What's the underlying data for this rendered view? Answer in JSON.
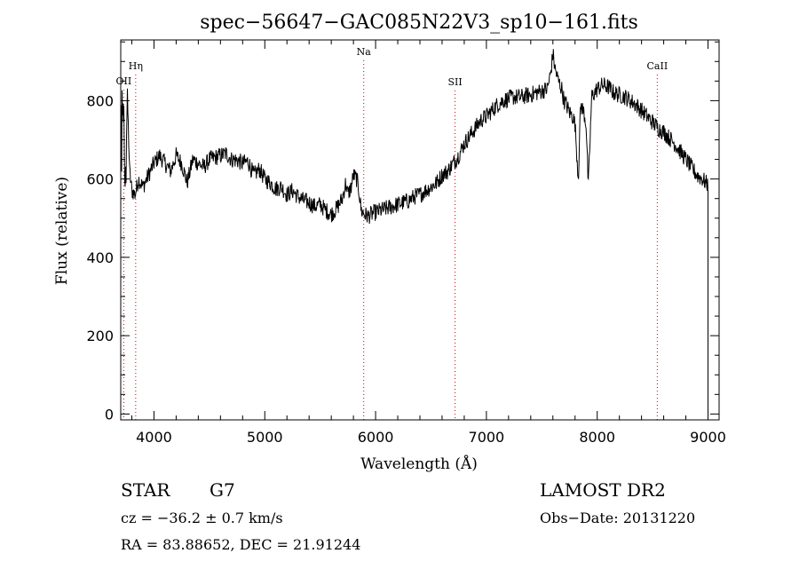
{
  "chart_data": {
    "type": "line",
    "title": "spec−56647−GAC085N22V3_sp10−161.fits",
    "xlabel": "Wavelength (Å)",
    "ylabel": "Flux (relative)",
    "xlim": [
      3700,
      9100
    ],
    "ylim": [
      -15,
      955
    ],
    "xticks": [
      4000,
      5000,
      6000,
      7000,
      8000,
      9000
    ],
    "yticks": [
      0,
      200,
      400,
      600,
      800
    ],
    "grid": false,
    "line_color": "#000000",
    "marker_color": "#cc0000",
    "lines": [
      {
        "label": "OII",
        "wavelength": 3727
      },
      {
        "label": "Hη",
        "wavelength": 3835
      },
      {
        "label": "Na",
        "wavelength": 5893
      },
      {
        "label": "SII",
        "wavelength": 6717
      },
      {
        "label": "CaII",
        "wavelength": 8542
      }
    ],
    "spectrum": {
      "x": [
        3700,
        3720,
        3740,
        3760,
        3780,
        3800,
        3830,
        3860,
        3900,
        3950,
        4000,
        4050,
        4100,
        4150,
        4200,
        4250,
        4300,
        4350,
        4400,
        4450,
        4500,
        4550,
        4600,
        4650,
        4700,
        4750,
        4800,
        4850,
        4900,
        4950,
        5000,
        5050,
        5100,
        5150,
        5200,
        5250,
        5300,
        5350,
        5400,
        5450,
        5500,
        5550,
        5600,
        5650,
        5700,
        5730,
        5750,
        5780,
        5800,
        5830,
        5850,
        5870,
        5900,
        5930,
        5960,
        6000,
        6050,
        6100,
        6150,
        6200,
        6250,
        6300,
        6350,
        6400,
        6450,
        6500,
        6550,
        6600,
        6650,
        6700,
        6750,
        6800,
        6850,
        6900,
        6950,
        7000,
        7050,
        7100,
        7150,
        7200,
        7250,
        7300,
        7350,
        7400,
        7450,
        7500,
        7550,
        7580,
        7600,
        7620,
        7650,
        7680,
        7700,
        7720,
        7750,
        7780,
        7800,
        7830,
        7850,
        7880,
        7900,
        7920,
        7950,
        8000,
        8050,
        8100,
        8150,
        8200,
        8250,
        8300,
        8350,
        8400,
        8450,
        8500,
        8550,
        8600,
        8650,
        8700,
        8750,
        8800,
        8850,
        8900,
        8950,
        8980,
        9000,
        9010
      ],
      "y": [
        640,
        780,
        590,
        810,
        620,
        570,
        560,
        600,
        580,
        610,
        640,
        660,
        640,
        620,
        660,
        640,
        590,
        650,
        640,
        630,
        650,
        655,
        660,
        665,
        650,
        648,
        640,
        645,
        610,
        625,
        600,
        590,
        575,
        580,
        560,
        570,
        555,
        545,
        540,
        530,
        535,
        520,
        510,
        525,
        550,
        590,
        560,
        580,
        610,
        600,
        570,
        520,
        510,
        505,
        510,
        515,
        520,
        525,
        530,
        535,
        540,
        545,
        555,
        560,
        570,
        580,
        590,
        610,
        620,
        640,
        660,
        690,
        710,
        730,
        750,
        760,
        775,
        790,
        800,
        805,
        810,
        808,
        812,
        815,
        820,
        825,
        830,
        870,
        920,
        880,
        850,
        830,
        800,
        790,
        770,
        760,
        740,
        600,
        790,
        770,
        740,
        580,
        810,
        830,
        840,
        835,
        820,
        815,
        810,
        800,
        790,
        775,
        760,
        745,
        730,
        720,
        705,
        690,
        670,
        650,
        630,
        610,
        600,
        590,
        585,
        0
      ],
      "noise_amplitude": 22
    }
  },
  "info": {
    "class_label": "STAR",
    "subclass_label": "G7",
    "survey_label": "LAMOST DR2",
    "cz_text": "cz = −36.2 ± 0.7 km/s",
    "obs_date_text": "Obs−Date: 20131220",
    "radec_text": "RA =  83.88652, DEC =  21.91244"
  }
}
